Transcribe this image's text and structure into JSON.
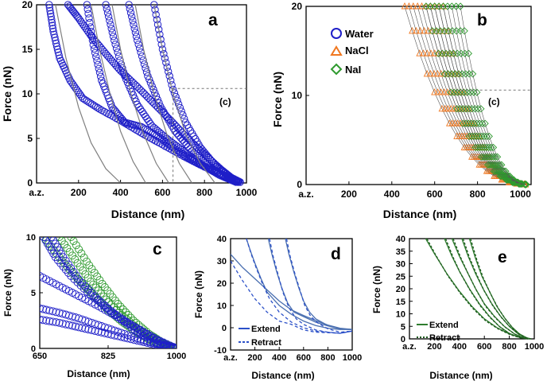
{
  "chart_data": [
    {
      "panel_label": "a",
      "type": "scatter",
      "xlabel": "Distance (nm)",
      "ylabel": "Force (nN)",
      "xlim": [
        0,
        1000
      ],
      "ylim": [
        0,
        20
      ],
      "xticks": [
        "a.z.",
        "200",
        "400",
        "600",
        "800",
        "1000"
      ],
      "yticks": [
        "0",
        "5",
        "10",
        "15",
        "20"
      ],
      "annotation": "(c)",
      "colors": {
        "water": "#1f1fc8",
        "fit": "#808080"
      },
      "series": [
        {
          "kind": "markers",
          "x": [
            60,
            80,
            110,
            160,
            220,
            300,
            400,
            500,
            600,
            700,
            800,
            900,
            970
          ],
          "y": [
            20,
            17,
            14,
            11.5,
            9.5,
            8.3,
            7,
            5.6,
            4.3,
            3,
            1.8,
            0.8,
            0.1
          ]
        },
        {
          "kind": "markers",
          "x": [
            150,
            200,
            260,
            330,
            400,
            480,
            560,
            640,
            720,
            800,
            880,
            950
          ],
          "y": [
            20,
            18.5,
            16.5,
            14.5,
            12.6,
            10.8,
            8.9,
            7,
            5,
            3.2,
            1.5,
            0.2
          ]
        },
        {
          "kind": "markers",
          "x": [
            240,
            270,
            310,
            360,
            420,
            500,
            580,
            660,
            740,
            820,
            900,
            960
          ],
          "y": [
            20,
            15.5,
            11.5,
            8.5,
            6.8,
            6.3,
            5.2,
            3.8,
            2.6,
            1.6,
            0.7,
            0.1
          ]
        },
        {
          "kind": "markers",
          "x": [
            330,
            370,
            420,
            480,
            550,
            630,
            710,
            790,
            870,
            950
          ],
          "y": [
            20,
            16,
            12,
            8.8,
            6.4,
            4.8,
            3.4,
            2,
            0.9,
            0.1
          ]
        },
        {
          "kind": "markers",
          "x": [
            440,
            480,
            530,
            590,
            660,
            740,
            820,
            900,
            960
          ],
          "y": [
            20,
            16,
            12,
            8.6,
            5.8,
            3.6,
            1.9,
            0.6,
            0.1
          ]
        },
        {
          "kind": "markers",
          "x": [
            560,
            600,
            650,
            710,
            780,
            850,
            920,
            970
          ],
          "y": [
            20,
            15,
            10.5,
            6.8,
            4,
            2,
            0.7,
            0.1
          ]
        },
        {
          "kind": "fit",
          "x": [
            90,
            140,
            200,
            260,
            330,
            400
          ],
          "y": [
            20,
            14,
            8.5,
            4.5,
            1.6,
            0
          ]
        },
        {
          "kind": "fit",
          "x": [
            260,
            300,
            350,
            400,
            460,
            520
          ],
          "y": [
            20,
            15,
            10,
            5.8,
            2.4,
            0
          ]
        },
        {
          "kind": "fit",
          "x": [
            360,
            400,
            450,
            510,
            570,
            630
          ],
          "y": [
            20,
            15,
            10,
            5.5,
            2.2,
            0
          ]
        },
        {
          "kind": "fit",
          "x": [
            470,
            510,
            560,
            620,
            680,
            740
          ],
          "y": [
            20,
            15,
            10,
            5.5,
            2.2,
            0
          ]
        },
        {
          "kind": "fit",
          "x": [
            560,
            600,
            650,
            710,
            780,
            850
          ],
          "y": [
            20,
            15,
            10,
            5.5,
            2.2,
            0
          ]
        }
      ]
    },
    {
      "panel_label": "b",
      "type": "scatter",
      "xlabel": "Distance (nm)",
      "ylabel": "Force (nN)",
      "xlim": [
        0,
        1050
      ],
      "ylim": [
        0,
        20
      ],
      "xticks": [
        "a.z.",
        "200",
        "400",
        "600",
        "800",
        "1000"
      ],
      "yticks": [
        "0",
        "10",
        "20"
      ],
      "annotation": "(c)",
      "legend": {
        "position": "top-left",
        "entries": [
          "Water",
          "NaCl",
          "NaI"
        ]
      },
      "colors": {
        "Water": "#1f1fc8",
        "NaCl": "#f07820",
        "NaI": "#2e9a2e"
      },
      "series": [
        {
          "name": "NaCl",
          "starts": [
            460,
            480,
            500,
            520,
            540,
            560,
            580,
            600,
            620,
            640
          ],
          "x_end": 1040
        },
        {
          "name": "NaI",
          "starts": [
            560,
            580,
            600,
            620,
            640,
            660,
            680,
            700,
            720
          ],
          "x_end": 1040
        }
      ]
    },
    {
      "panel_label": "c",
      "type": "scatter",
      "xlabel": "Distance (nm)",
      "ylabel": "Force (nN)",
      "xlim": [
        650,
        1000
      ],
      "ylim": [
        0,
        10
      ],
      "xticks": [
        "650",
        "825",
        "1000"
      ],
      "yticks": [
        "0",
        "5",
        "10"
      ],
      "colors": {
        "water": "#1f1fc8",
        "nai": "#2e9a2e"
      },
      "series": [
        {
          "name": "NaI",
          "x": [
            660,
            700,
            740,
            780,
            820,
            860,
            900,
            940,
            980,
            1000
          ],
          "y": [
            10,
            8.2,
            6.5,
            5,
            3.6,
            2.4,
            1.4,
            0.6,
            0.1,
            0
          ]
        },
        {
          "name": "NaI",
          "x": [
            700,
            740,
            780,
            820,
            860,
            900,
            940,
            980,
            1000
          ],
          "y": [
            10,
            8,
            6,
            4.4,
            3,
            1.8,
            0.9,
            0.2,
            0
          ]
        },
        {
          "name": "NaI",
          "x": [
            730,
            770,
            810,
            850,
            890,
            930,
            970,
            1000
          ],
          "y": [
            10,
            7.8,
            5.8,
            4,
            2.5,
            1.3,
            0.4,
            0
          ]
        },
        {
          "name": "Water",
          "x": [
            650,
            700,
            750,
            800,
            850,
            900,
            950,
            1000
          ],
          "y": [
            6.5,
            5.6,
            4.7,
            3.8,
            2.8,
            1.8,
            0.8,
            0
          ]
        },
        {
          "name": "Water",
          "x": [
            650,
            700,
            750,
            800,
            850,
            900,
            950,
            1000
          ],
          "y": [
            3.6,
            3.2,
            2.7,
            2.1,
            1.5,
            0.9,
            0.4,
            0
          ]
        },
        {
          "name": "Water",
          "x": [
            650,
            700,
            750,
            800,
            850,
            900,
            950,
            1000
          ],
          "y": [
            2.6,
            2.3,
            1.9,
            1.5,
            1.1,
            0.7,
            0.3,
            0
          ]
        },
        {
          "name": "Water",
          "x": [
            660,
            690,
            730,
            780,
            830,
            880,
            930,
            980,
            1000
          ],
          "y": [
            10,
            8.2,
            6.5,
            4.8,
            3.4,
            2.2,
            1.1,
            0.2,
            0
          ]
        },
        {
          "name": "Water",
          "x": [
            680,
            710,
            750,
            800,
            850,
            900,
            950,
            1000
          ],
          "y": [
            10,
            8.2,
            6.2,
            4.4,
            2.8,
            1.5,
            0.5,
            0
          ]
        }
      ]
    },
    {
      "panel_label": "d",
      "type": "line",
      "xlabel": "Distance (nm)",
      "ylabel": "Force (nN)",
      "xlim": [
        0,
        1000
      ],
      "ylim": [
        -10,
        40
      ],
      "xticks": [
        "a.z.",
        "200",
        "400",
        "600",
        "800",
        "1000"
      ],
      "yticks": [
        "-10",
        "0",
        "10",
        "20",
        "30",
        "40"
      ],
      "legend": {
        "position": "bottom-left",
        "entries": [
          "Extend",
          "Retract"
        ]
      },
      "colors": {
        "extend": "#4a6fb0",
        "retract": "#2b50c8"
      },
      "series": [
        {
          "name": "Extend",
          "x": [
            0,
            100,
            200,
            300,
            400,
            500,
            600,
            700,
            800,
            900,
            1000
          ],
          "y": [
            33,
            27,
            22,
            17,
            12,
            8,
            5.5,
            3.2,
            1.2,
            -0.2,
            -0.8
          ]
        },
        {
          "name": "Extend",
          "x": [
            130,
            160,
            200,
            250,
            300,
            400,
            500,
            600,
            700,
            800,
            900,
            1000
          ],
          "y": [
            40,
            35,
            29,
            22,
            16,
            10,
            6,
            3,
            1,
            -0.2,
            -0.8,
            -0.8
          ]
        },
        {
          "name": "Extend",
          "x": [
            310,
            340,
            380,
            420,
            470,
            520,
            600,
            700,
            800,
            900,
            1000
          ],
          "y": [
            40,
            33,
            25,
            18,
            11,
            7,
            5,
            2.5,
            0.8,
            -0.5,
            -0.8
          ]
        },
        {
          "name": "Extend",
          "x": [
            450,
            480,
            520,
            560,
            600,
            650,
            700,
            800,
            900,
            1000
          ],
          "y": [
            40,
            33,
            25,
            18,
            12,
            7,
            4,
            1,
            -0.5,
            -0.8
          ]
        },
        {
          "name": "Retract",
          "x": [
            0,
            100,
            200,
            300,
            400,
            500,
            600,
            700,
            800,
            900,
            1000
          ],
          "y": [
            30,
            21,
            13,
            7,
            3,
            1.5,
            -1,
            -2,
            -2.2,
            -2.5,
            -1.5
          ]
        },
        {
          "name": "Retract",
          "x": [
            130,
            170,
            210,
            260,
            320,
            400,
            500,
            600,
            700,
            800,
            900,
            1000
          ],
          "y": [
            40,
            33,
            27,
            20,
            13,
            7,
            2.5,
            0,
            -1.5,
            -2,
            -2.5,
            -1.5
          ]
        },
        {
          "name": "Retract",
          "x": [
            320,
            350,
            390,
            430,
            480,
            540,
            600,
            700,
            800,
            900,
            1000
          ],
          "y": [
            40,
            32,
            24,
            16,
            9,
            4,
            1.5,
            -1,
            -2,
            -2.5,
            -1.5
          ]
        },
        {
          "name": "Retract",
          "x": [
            460,
            490,
            530,
            570,
            610,
            660,
            720,
            800,
            900,
            1000
          ],
          "y": [
            40,
            32,
            24,
            17,
            10,
            5,
            2,
            -0.5,
            -2,
            -1.5
          ]
        }
      ]
    },
    {
      "panel_label": "e",
      "type": "line",
      "xlabel": "Distance (nm)",
      "ylabel": "Force (nN)",
      "xlim": [
        0,
        1000
      ],
      "ylim": [
        0,
        40
      ],
      "xticks": [
        "a.z.",
        "200",
        "400",
        "600",
        "800",
        "1000"
      ],
      "yticks": [
        "0",
        "5",
        "10",
        "15",
        "20",
        "25",
        "30",
        "35",
        "40"
      ],
      "legend": {
        "position": "bottom-left",
        "entries": [
          "Extend",
          "Retract"
        ]
      },
      "colors": {
        "extend": "#2e7d2e",
        "retract": "#1e5a1e"
      },
      "series": [
        {
          "name": "Extend",
          "x": [
            130,
            200,
            300,
            400,
            500,
            600,
            700,
            800,
            900,
            950
          ],
          "y": [
            40,
            34,
            26,
            19,
            13,
            8,
            4.5,
            2,
            0.5,
            0
          ]
        },
        {
          "name": "Extend",
          "x": [
            280,
            340,
            400,
            480,
            560,
            640,
            720,
            800,
            880,
            950
          ],
          "y": [
            40,
            33,
            27,
            20,
            14,
            9,
            5,
            2.2,
            0.6,
            0
          ]
        },
        {
          "name": "Extend",
          "x": [
            340,
            400,
            460,
            530,
            600,
            680,
            760,
            840,
            910,
            960
          ],
          "y": [
            40,
            33,
            27,
            20,
            14,
            9,
            5,
            2,
            0.5,
            0
          ]
        },
        {
          "name": "Extend",
          "x": [
            420,
            470,
            530,
            590,
            660,
            730,
            800,
            870,
            930,
            970
          ],
          "y": [
            40,
            33,
            26,
            20,
            14,
            9,
            5,
            2,
            0.5,
            0
          ]
        },
        {
          "name": "Extend",
          "x": [
            480,
            530,
            580,
            640,
            700,
            760,
            820,
            880,
            940,
            975
          ],
          "y": [
            40,
            32,
            25,
            19,
            13,
            8.5,
            4.8,
            2,
            0.4,
            0
          ]
        },
        {
          "name": "Retract",
          "x": [
            140,
            210,
            310,
            410,
            510,
            610,
            710,
            810,
            900,
            950
          ],
          "y": [
            40,
            33.5,
            25,
            18,
            12,
            7.2,
            4,
            1.6,
            0.3,
            0
          ]
        },
        {
          "name": "Retract",
          "x": [
            290,
            350,
            410,
            490,
            570,
            650,
            730,
            810,
            890,
            950
          ],
          "y": [
            40,
            32.5,
            26,
            19,
            13,
            8.3,
            4.5,
            1.8,
            0.4,
            0
          ]
        },
        {
          "name": "Retract",
          "x": [
            350,
            410,
            470,
            540,
            610,
            690,
            770,
            850,
            920,
            960
          ],
          "y": [
            40,
            32.5,
            26,
            19,
            13,
            8.3,
            4.5,
            1.7,
            0.3,
            0
          ]
        },
        {
          "name": "Retract",
          "x": [
            430,
            480,
            540,
            600,
            670,
            740,
            810,
            880,
            940,
            970
          ],
          "y": [
            40,
            32.5,
            25.5,
            19,
            13,
            8.3,
            4.5,
            1.7,
            0.3,
            0
          ]
        },
        {
          "name": "Retract",
          "x": [
            490,
            540,
            590,
            650,
            710,
            770,
            830,
            890,
            950,
            975
          ],
          "y": [
            40,
            31.5,
            24.5,
            18,
            12.3,
            7.8,
            4.2,
            1.6,
            0.2,
            0
          ]
        }
      ]
    }
  ]
}
